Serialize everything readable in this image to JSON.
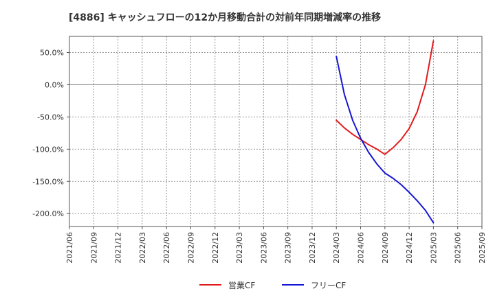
{
  "chart_data": {
    "type": "line",
    "title": "[4886]  キャッシュフローの12か月移動合計の対前年同期増減率の推移",
    "xlabel": "",
    "ylabel": "",
    "ylim": [
      -220,
      75
    ],
    "yticks": [
      50,
      0,
      -50,
      -100,
      -150,
      -200
    ],
    "ytick_labels": [
      "50.0%",
      "0.0%",
      "-50.0%",
      "-100.0%",
      "-150.0%",
      "-200.0%"
    ],
    "x_categories": [
      "2021/06",
      "2021/09",
      "2021/12",
      "2022/03",
      "2022/06",
      "2022/09",
      "2022/12",
      "2023/03",
      "2023/06",
      "2023/09",
      "2023/12",
      "2024/03",
      "2024/06",
      "2024/09",
      "2024/12",
      "2025/03",
      "2025/06",
      "2025/09"
    ],
    "grid": true,
    "legend_position": "bottom",
    "series": [
      {
        "name": "営業CF",
        "color": "#e31a1c",
        "x": [
          11,
          11.33,
          11.67,
          12,
          12.33,
          12.67,
          13,
          13.33,
          13.67,
          14,
          14.33,
          14.67,
          15
        ],
        "values": [
          -55,
          -67,
          -77,
          -85,
          -93,
          -100,
          -108,
          -98,
          -85,
          -68,
          -42,
          0,
          68
        ]
      },
      {
        "name": "フリーCF",
        "color": "#1515d6",
        "x": [
          11,
          11.33,
          11.67,
          12,
          12.33,
          12.67,
          13,
          13.33,
          13.67,
          14,
          14.33,
          14.67,
          15
        ],
        "values": [
          44,
          -15,
          -55,
          -83,
          -105,
          -123,
          -137,
          -145,
          -155,
          -167,
          -180,
          -195,
          -214
        ]
      }
    ]
  }
}
